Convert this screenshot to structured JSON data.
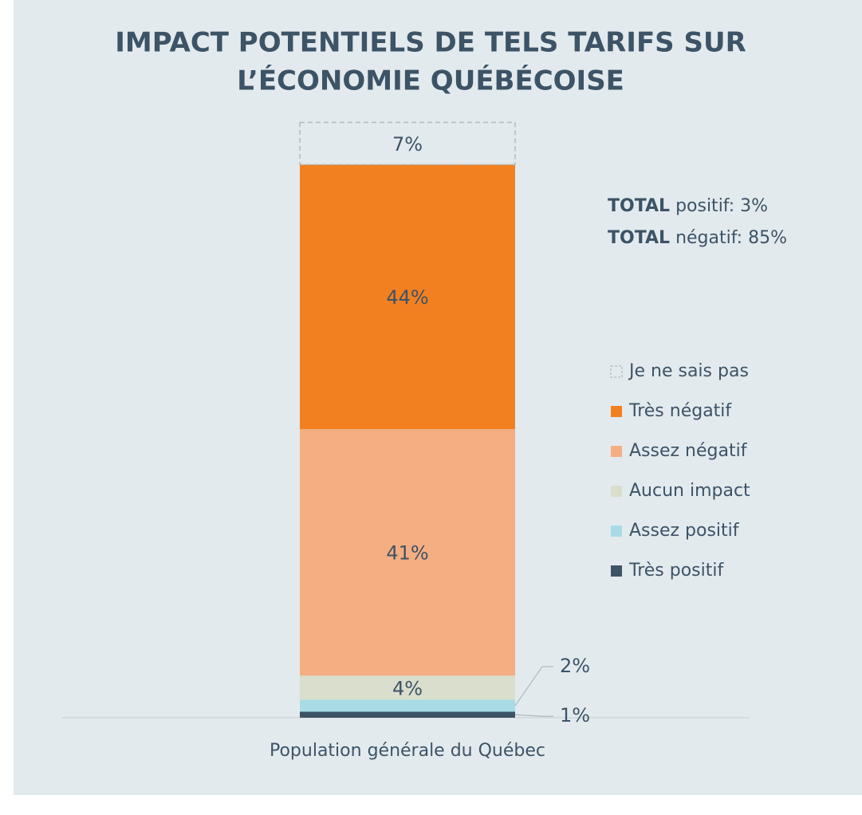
{
  "chart_data": {
    "type": "stacked-bar",
    "title": [
      "IMPACT POTENTIELS DE TELS TARIFS SUR",
      "L’ÉCONOMIE QUÉBÉCOISE"
    ],
    "categories": [
      "Population générale du Québec"
    ],
    "ylim": [
      0,
      100
    ],
    "series": [
      {
        "name": "Très positif",
        "color": "#3d5366",
        "values": [
          1
        ],
        "value_labels": [
          "1%"
        ]
      },
      {
        "name": "Assez positif",
        "color": "#a8dbe6",
        "values": [
          2
        ],
        "value_labels": [
          "2%"
        ]
      },
      {
        "name": "Aucun impact",
        "color": "#d9dfcc",
        "values": [
          4
        ],
        "value_labels": [
          "4%"
        ]
      },
      {
        "name": "Assez négatif",
        "color": "#f4ae82",
        "values": [
          41
        ],
        "value_labels": [
          "41%"
        ]
      },
      {
        "name": "Très négatif",
        "color": "#f28021",
        "values": [
          44
        ],
        "value_labels": [
          "44%"
        ]
      },
      {
        "name": "Je ne sais pas",
        "color": "#b0bcc0",
        "dashed": true,
        "values": [
          7
        ],
        "value_labels": [
          "7%"
        ]
      }
    ],
    "annotations": [
      [
        "TOTAL",
        "positif: 3%"
      ],
      [
        "TOTAL",
        "négatif: 85%"
      ]
    ]
  }
}
